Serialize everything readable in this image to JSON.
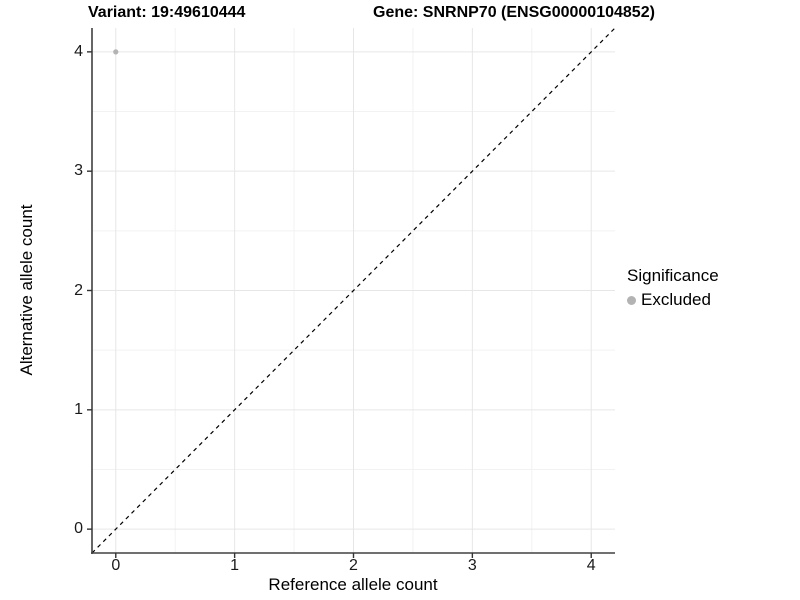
{
  "header": {
    "variant_title": "Variant: 19:49610444",
    "gene_title": "Gene: SNRNP70 (ENSG00000104852)"
  },
  "chart_data": {
    "type": "scatter",
    "xlabel": "Reference allele count",
    "ylabel": "Alternative allele count",
    "xlim": [
      -0.2,
      4.2
    ],
    "ylim": [
      -0.2,
      4.2
    ],
    "x_ticks": [
      0,
      1,
      2,
      3,
      4
    ],
    "y_ticks": [
      0,
      1,
      2,
      3,
      4
    ],
    "minor_gridlines_x": [
      0.5,
      1.5,
      2.5,
      3.5
    ],
    "minor_gridlines_y": [
      0.5,
      1.5,
      2.5,
      3.5
    ],
    "grid": true,
    "reference_line": {
      "description": "identity line y = x",
      "style": "dashed",
      "color": "#000000",
      "from": [
        -0.2,
        -0.2
      ],
      "to": [
        4.2,
        4.2
      ]
    },
    "series": [
      {
        "name": "Excluded",
        "color": "#b3b3b3",
        "points": [
          {
            "x": 0,
            "y": 4
          }
        ]
      }
    ],
    "legend": {
      "title": "Significance",
      "position": "right",
      "entries": [
        {
          "label": "Excluded",
          "color": "#b3b3b3"
        }
      ]
    }
  },
  "colors": {
    "background": "#ffffff",
    "major_grid": "#e6e6e6",
    "minor_grid": "#f2f2f2",
    "axis_line": "#404040",
    "tick_mark": "#333333",
    "point": "#b3b3b3",
    "dashed_line": "#000000"
  }
}
